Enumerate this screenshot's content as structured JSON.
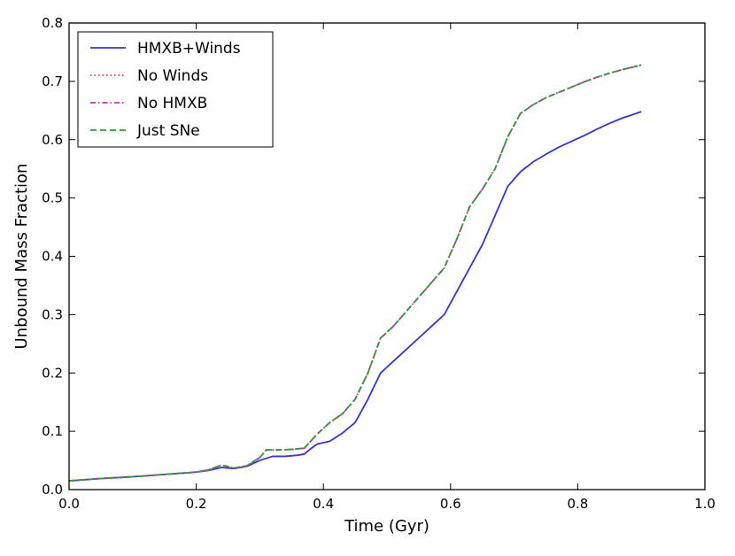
{
  "chart_data": {
    "type": "line",
    "title": "",
    "xlabel": "Time (Gyr)",
    "ylabel": "Unbound Mass Fraction",
    "xlim": [
      0.0,
      1.0
    ],
    "ylim": [
      0.0,
      0.8
    ],
    "xticks": [
      0.0,
      0.2,
      0.4,
      0.6,
      0.8,
      1.0
    ],
    "xtick_labels": [
      "0.0",
      "0.2",
      "0.4",
      "0.6",
      "0.8",
      "1.0"
    ],
    "yticks": [
      0.0,
      0.1,
      0.2,
      0.3,
      0.4,
      0.5,
      0.6,
      0.7,
      0.8
    ],
    "ytick_labels": [
      "0.0",
      "0.1",
      "0.2",
      "0.3",
      "0.4",
      "0.5",
      "0.6",
      "0.7",
      "0.8"
    ],
    "grid": false,
    "legend_position": "top-left",
    "series": [
      {
        "name": "HMXB+Winds",
        "color": "#3333dd",
        "style": "solid",
        "x": [
          0.0,
          0.05,
          0.1,
          0.15,
          0.2,
          0.22,
          0.24,
          0.26,
          0.28,
          0.3,
          0.32,
          0.34,
          0.36,
          0.37,
          0.38,
          0.39,
          0.41,
          0.43,
          0.45,
          0.47,
          0.49,
          0.51,
          0.53,
          0.55,
          0.57,
          0.59,
          0.61,
          0.63,
          0.65,
          0.67,
          0.69,
          0.71,
          0.73,
          0.75,
          0.77,
          0.79,
          0.81,
          0.83,
          0.85,
          0.87,
          0.9
        ],
        "y": [
          0.015,
          0.019,
          0.022,
          0.026,
          0.03,
          0.033,
          0.038,
          0.036,
          0.04,
          0.05,
          0.057,
          0.057,
          0.059,
          0.061,
          0.07,
          0.078,
          0.083,
          0.097,
          0.115,
          0.155,
          0.2,
          0.22,
          0.24,
          0.26,
          0.28,
          0.3,
          0.34,
          0.38,
          0.42,
          0.47,
          0.52,
          0.545,
          0.562,
          0.575,
          0.587,
          0.597,
          0.607,
          0.618,
          0.628,
          0.637,
          0.648
        ]
      },
      {
        "name": "No Winds",
        "color": "#ee3333",
        "style": "dotted",
        "x": [
          0.0,
          0.05,
          0.1,
          0.15,
          0.2,
          0.22,
          0.24,
          0.26,
          0.28,
          0.3,
          0.31,
          0.33,
          0.35,
          0.37,
          0.39,
          0.41,
          0.43,
          0.45,
          0.47,
          0.49,
          0.51,
          0.53,
          0.55,
          0.57,
          0.59,
          0.61,
          0.63,
          0.65,
          0.67,
          0.69,
          0.71,
          0.73,
          0.75,
          0.77,
          0.79,
          0.81,
          0.83,
          0.85,
          0.87,
          0.9
        ],
        "y": [
          0.015,
          0.019,
          0.022,
          0.026,
          0.03,
          0.034,
          0.042,
          0.037,
          0.041,
          0.055,
          0.068,
          0.068,
          0.069,
          0.071,
          0.095,
          0.115,
          0.13,
          0.155,
          0.2,
          0.26,
          0.28,
          0.305,
          0.33,
          0.355,
          0.38,
          0.43,
          0.485,
          0.515,
          0.55,
          0.605,
          0.645,
          0.66,
          0.672,
          0.681,
          0.69,
          0.699,
          0.707,
          0.714,
          0.72,
          0.728
        ]
      },
      {
        "name": "No HMXB",
        "color": "#bb33bb",
        "style": "dashdot",
        "x": [
          0.0,
          0.05,
          0.1,
          0.15,
          0.2,
          0.22,
          0.24,
          0.26,
          0.28,
          0.3,
          0.31,
          0.33,
          0.35,
          0.37,
          0.39,
          0.41,
          0.43,
          0.45,
          0.47,
          0.49,
          0.51,
          0.53,
          0.55,
          0.57,
          0.59,
          0.61,
          0.63,
          0.65,
          0.67,
          0.69,
          0.71,
          0.73,
          0.75,
          0.77,
          0.79,
          0.81,
          0.83,
          0.85,
          0.87,
          0.9
        ],
        "y": [
          0.015,
          0.019,
          0.022,
          0.026,
          0.03,
          0.034,
          0.042,
          0.037,
          0.041,
          0.055,
          0.068,
          0.068,
          0.069,
          0.071,
          0.095,
          0.115,
          0.13,
          0.155,
          0.2,
          0.26,
          0.28,
          0.305,
          0.33,
          0.355,
          0.38,
          0.43,
          0.485,
          0.515,
          0.55,
          0.605,
          0.645,
          0.66,
          0.672,
          0.681,
          0.69,
          0.699,
          0.707,
          0.714,
          0.72,
          0.728
        ]
      },
      {
        "name": "Just SNe",
        "color": "#339933",
        "style": "dashed",
        "x": [
          0.0,
          0.05,
          0.1,
          0.15,
          0.2,
          0.22,
          0.24,
          0.26,
          0.28,
          0.3,
          0.31,
          0.33,
          0.35,
          0.37,
          0.39,
          0.41,
          0.43,
          0.45,
          0.47,
          0.49,
          0.51,
          0.53,
          0.55,
          0.57,
          0.59,
          0.61,
          0.63,
          0.65,
          0.67,
          0.69,
          0.71,
          0.73,
          0.75,
          0.77,
          0.79,
          0.81,
          0.83,
          0.85,
          0.87,
          0.9
        ],
        "y": [
          0.015,
          0.019,
          0.022,
          0.026,
          0.03,
          0.034,
          0.042,
          0.037,
          0.041,
          0.055,
          0.068,
          0.068,
          0.069,
          0.071,
          0.095,
          0.115,
          0.13,
          0.155,
          0.2,
          0.26,
          0.28,
          0.305,
          0.33,
          0.355,
          0.38,
          0.43,
          0.485,
          0.515,
          0.55,
          0.605,
          0.645,
          0.66,
          0.672,
          0.681,
          0.69,
          0.699,
          0.707,
          0.714,
          0.72,
          0.728
        ]
      }
    ]
  }
}
